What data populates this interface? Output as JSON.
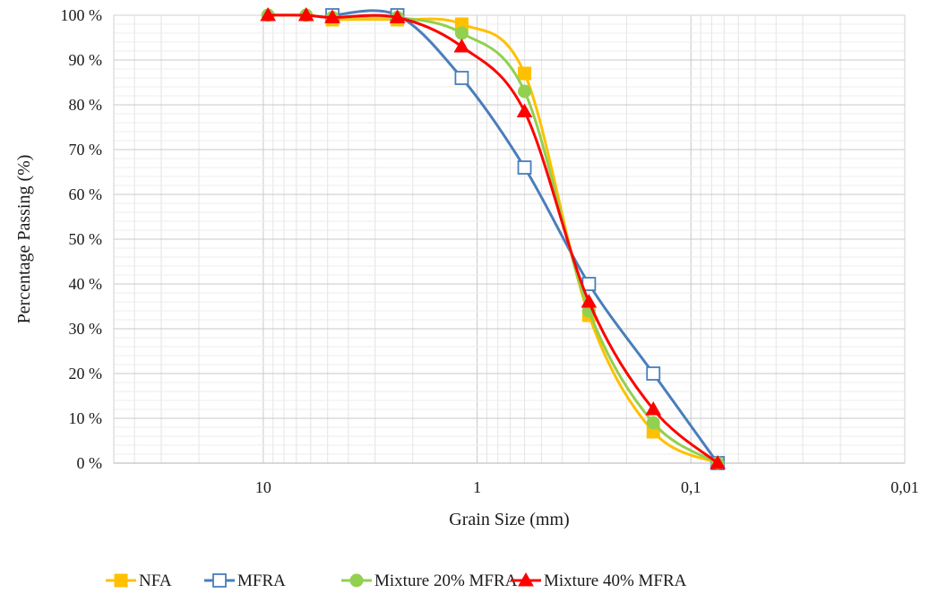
{
  "chart_data": {
    "type": "line",
    "title": "",
    "xlabel": "Grain Size (mm)",
    "ylabel": "Percentage Passing (%)",
    "x_scale": "log",
    "x_reversed": true,
    "xlim": [
      50,
      0.01
    ],
    "ylim": [
      0,
      100
    ],
    "x_ticks": [
      {
        "value": 10,
        "label": "10"
      },
      {
        "value": 1,
        "label": "1"
      },
      {
        "value": 0.1,
        "label": "0,1"
      },
      {
        "value": 0.01,
        "label": "0,01"
      }
    ],
    "y_ticks": [
      {
        "value": 0,
        "label": "0 %"
      },
      {
        "value": 10,
        "label": "10 %"
      },
      {
        "value": 20,
        "label": "20 %"
      },
      {
        "value": 30,
        "label": "30 %"
      },
      {
        "value": 40,
        "label": "40 %"
      },
      {
        "value": 50,
        "label": "50 %"
      },
      {
        "value": 60,
        "label": "60 %"
      },
      {
        "value": 70,
        "label": "70 %"
      },
      {
        "value": 80,
        "label": "80 %"
      },
      {
        "value": 90,
        "label": "90 %"
      },
      {
        "value": 100,
        "label": "100 %"
      }
    ],
    "grid": true,
    "legend_position": "bottom",
    "series": [
      {
        "name": "NFA",
        "color": "#FFC000",
        "marker": "square-filled",
        "x": [
          4.75,
          2.36,
          1.18,
          0.6,
          0.3,
          0.15,
          0.075
        ],
        "y": [
          99,
          99,
          98,
          87,
          33,
          7,
          0
        ]
      },
      {
        "name": "MFRA",
        "color": "#4A7EBB",
        "marker": "square-open",
        "x": [
          4.75,
          2.36,
          1.18,
          0.6,
          0.3,
          0.15,
          0.075
        ],
        "y": [
          100,
          100,
          86,
          66,
          40,
          20,
          0
        ]
      },
      {
        "name": "Mixture 20% MFRA",
        "color": "#92D050",
        "marker": "circle-filled",
        "x": [
          9.5,
          6.3,
          4.75,
          2.36,
          1.18,
          0.6,
          0.3,
          0.15,
          0.075
        ],
        "y": [
          100,
          100,
          99.5,
          99.5,
          96,
          83,
          34,
          9,
          0
        ]
      },
      {
        "name": "Mixture 40% MFRA",
        "color": "#FF0000",
        "marker": "triangle-filled",
        "x": [
          9.5,
          6.3,
          4.75,
          2.36,
          1.18,
          0.6,
          0.3,
          0.15,
          0.075
        ],
        "y": [
          100,
          100,
          99.5,
          99.5,
          93,
          78.5,
          36,
          12,
          0
        ]
      }
    ]
  }
}
